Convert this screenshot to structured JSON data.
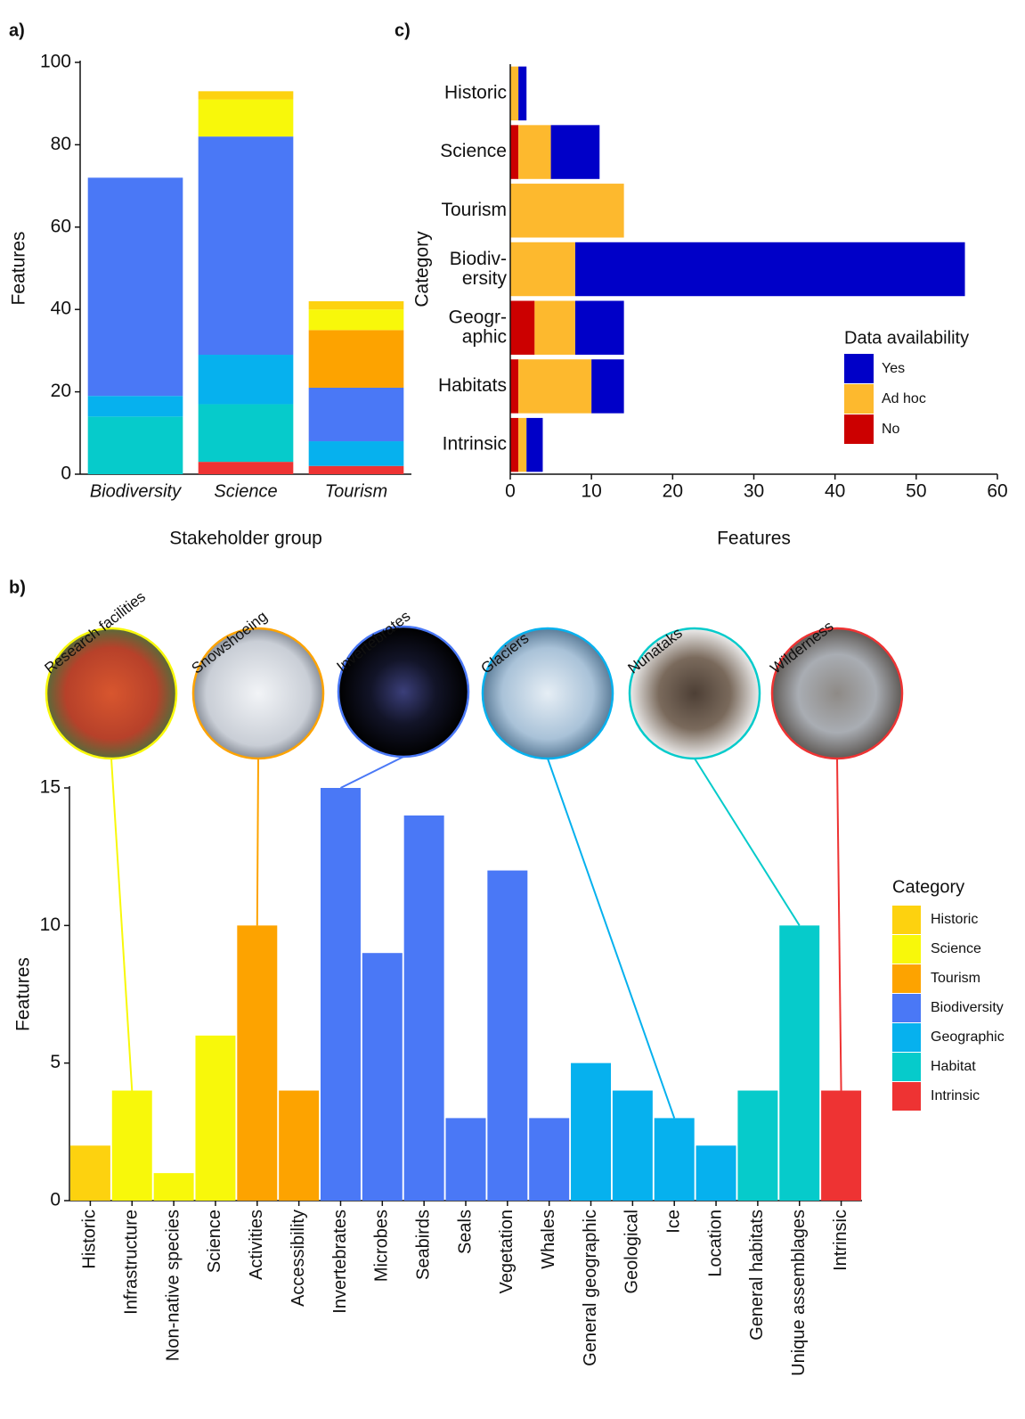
{
  "chart_data": [
    {
      "type": "bar",
      "stacked": true,
      "panel_label": "a)",
      "xlabel": "Stakeholder group",
      "ylabel": "Features",
      "categories": [
        "Biodiversity",
        "Science",
        "Tourism"
      ],
      "ylim": [
        0,
        100
      ],
      "yticks": [
        0,
        20,
        40,
        60,
        80,
        100
      ],
      "legend_title": "Category",
      "series": [
        {
          "name": "Historic",
          "color": "#fdd20f",
          "values": [
            0,
            2,
            2
          ]
        },
        {
          "name": "Science",
          "color": "#f8f80a",
          "values": [
            0,
            9,
            5
          ]
        },
        {
          "name": "Tourism",
          "color": "#fda300",
          "values": [
            0,
            0,
            14
          ]
        },
        {
          "name": "Biodiversity",
          "color": "#4a78f6",
          "values": [
            53,
            53,
            13
          ]
        },
        {
          "name": "Geographic",
          "color": "#06b1ee",
          "values": [
            5,
            12,
            6
          ]
        },
        {
          "name": "Habitat",
          "color": "#06cbcb",
          "values": [
            14,
            14,
            0
          ]
        },
        {
          "name": "Intrinsic",
          "color": "#ee3333",
          "values": [
            0,
            3,
            2
          ]
        }
      ]
    },
    {
      "type": "bar",
      "panel_label": "b)",
      "ylabel": "Features",
      "categories": [
        "Historic",
        "Infrastructure",
        "Non-native species",
        "Science",
        "Activities",
        "Accessibility",
        "Invertebrates",
        "Microbes",
        "Seabirds",
        "Seals",
        "Vegetation",
        "Whales",
        "General geographic",
        "Geological",
        "Ice",
        "Location",
        "General habitats",
        "Unique assemblages",
        "Intrinsic"
      ],
      "values": [
        2,
        4,
        1,
        6,
        10,
        4,
        15,
        9,
        14,
        3,
        12,
        3,
        5,
        4,
        3,
        2,
        4,
        10,
        4
      ],
      "colors": [
        "#fdd20f",
        "#f8f80a",
        "#f8f80a",
        "#f8f80a",
        "#fda300",
        "#fda300",
        "#4a78f6",
        "#4a78f6",
        "#4a78f6",
        "#4a78f6",
        "#4a78f6",
        "#4a78f6",
        "#06b1ee",
        "#06b1ee",
        "#06b1ee",
        "#06b1ee",
        "#06cbcb",
        "#06cbcb",
        "#ee3333"
      ],
      "ylim": [
        0,
        15
      ],
      "yticks": [
        0,
        5,
        10,
        15
      ],
      "annotations": [
        "Research facilities",
        "Snowshoeing",
        "Invertebrates",
        "Glaciers",
        "Nunataks",
        "Wilderness"
      ]
    },
    {
      "type": "bar",
      "orientation": "horizontal",
      "stacked": true,
      "panel_label": "c)",
      "xlabel": "Features",
      "ylabel": "Category",
      "categories": [
        "Historic",
        "Science",
        "Tourism",
        "Biodiv-\nersity",
        "Geogr-\naphic",
        "Habitats",
        "Intrinsic"
      ],
      "xlim": [
        0,
        60
      ],
      "xticks": [
        0,
        10,
        20,
        30,
        40,
        50,
        60
      ],
      "legend_title": "Data availability",
      "series": [
        {
          "name": "Yes",
          "color": "#0000c8",
          "values": [
            1,
            6,
            0,
            48,
            6,
            4,
            2
          ]
        },
        {
          "name": "Ad hoc",
          "color": "#fdb92e",
          "values": [
            1,
            4,
            14,
            8,
            5,
            9,
            1
          ]
        },
        {
          "name": "No",
          "color": "#cc0000",
          "values": [
            0,
            1,
            0,
            0,
            3,
            1,
            1
          ]
        }
      ]
    }
  ]
}
